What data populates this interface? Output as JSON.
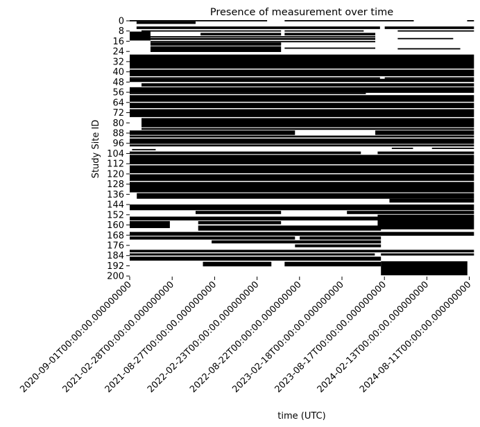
{
  "chart_data": {
    "type": "heatmap",
    "title": "Presence of measurement over time",
    "xlabel": "time (UTC)",
    "ylabel": "Study Site ID",
    "colors": {
      "present": "#000000",
      "absent": "#ffffff"
    },
    "x_start_date": "2020-09-01",
    "x_range_days": [
      0,
      1460
    ],
    "y_range_rows": [
      0,
      201
    ],
    "x_ticks": [
      {
        "day": 0,
        "label": "2020-09-01T00:00:00.000000000"
      },
      {
        "day": 180,
        "label": "2021-02-28T00:00:00.000000000"
      },
      {
        "day": 360,
        "label": "2021-08-27T00:00:00.000000000"
      },
      {
        "day": 540,
        "label": "2022-02-23T00:00:00.000000000"
      },
      {
        "day": 720,
        "label": "2022-08-22T00:00:00.000000000"
      },
      {
        "day": 900,
        "label": "2023-02-18T00:00:00.000000000"
      },
      {
        "day": 1080,
        "label": "2023-08-17T00:00:00.000000000"
      },
      {
        "day": 1260,
        "label": "2024-02-13T00:00:00.000000000"
      },
      {
        "day": 1440,
        "label": "2024-08-11T00:00:00.000000000"
      }
    ],
    "y_ticks": [
      "0",
      "8",
      "16",
      "24",
      "32",
      "40",
      "48",
      "56",
      "64",
      "72",
      "80",
      "88",
      "96",
      "104",
      "112",
      "120",
      "128",
      "136",
      "144",
      "152",
      "160",
      "168",
      "176",
      "184",
      "192",
      "200"
    ],
    "present_segments": [
      [
        0,
        1,
        0,
        582
      ],
      [
        0,
        1,
        656,
        1203
      ],
      [
        0,
        1,
        1429,
        1458
      ],
      [
        1,
        3,
        29,
        279
      ],
      [
        5,
        7,
        29,
        1060
      ],
      [
        5,
        7,
        1080,
        1458
      ],
      [
        8,
        9,
        50,
        641
      ],
      [
        8,
        9,
        656,
        991
      ],
      [
        8,
        9,
        1135,
        1458
      ],
      [
        9,
        16,
        0,
        88
      ],
      [
        10,
        12,
        300,
        641
      ],
      [
        10,
        12,
        656,
        1040
      ],
      [
        12.6,
        13.6,
        88,
        1040
      ],
      [
        14,
        15.5,
        88,
        1040
      ],
      [
        14,
        15,
        1135,
        1370
      ],
      [
        16.4,
        17.4,
        88,
        1040
      ],
      [
        17.5,
        20,
        88,
        641
      ],
      [
        18,
        19,
        432,
        641
      ],
      [
        20.5,
        25,
        88,
        641
      ],
      [
        21.5,
        22.5,
        656,
        1040
      ],
      [
        22,
        23,
        1135,
        1400
      ],
      [
        27,
        38,
        0,
        1458
      ],
      [
        38.8,
        44,
        0,
        1458
      ],
      [
        44.8,
        46,
        0,
        1060
      ],
      [
        44.8,
        46,
        1080,
        1458
      ],
      [
        46,
        48.5,
        0,
        1458
      ],
      [
        49.5,
        52,
        50,
        1458
      ],
      [
        52.6,
        57,
        0,
        1458
      ],
      [
        57,
        58,
        0,
        1000
      ],
      [
        58.8,
        64,
        0,
        1458
      ],
      [
        64.8,
        69,
        0,
        1458
      ],
      [
        69.8,
        76,
        0,
        1458
      ],
      [
        76.8,
        84,
        50,
        1458
      ],
      [
        84.6,
        86,
        50,
        1458
      ],
      [
        86.5,
        90,
        0,
        700
      ],
      [
        86.5,
        90,
        1040,
        1458
      ],
      [
        90.5,
        92,
        0,
        1458
      ],
      [
        92.8,
        97,
        0,
        1458
      ],
      [
        97.5,
        99,
        0,
        1458
      ],
      [
        101,
        102,
        10,
        110
      ],
      [
        100,
        101,
        1110,
        1200
      ],
      [
        100,
        101,
        1280,
        1458
      ],
      [
        103,
        105,
        0,
        979
      ],
      [
        103,
        105,
        1050,
        1458
      ],
      [
        105.6,
        113,
        0,
        1458
      ],
      [
        113.8,
        120,
        0,
        1458
      ],
      [
        120.8,
        126,
        0,
        1458
      ],
      [
        126.8,
        135,
        0,
        1458
      ],
      [
        135.6,
        140,
        30,
        1458
      ],
      [
        140,
        143,
        1100,
        1458
      ],
      [
        144.5,
        149,
        0,
        1458
      ],
      [
        149.5,
        152,
        279,
        641
      ],
      [
        149.5,
        152,
        920,
        1458
      ],
      [
        154,
        157,
        0,
        1060
      ],
      [
        152.5,
        164,
        1050,
        1458
      ],
      [
        157.5,
        163,
        0,
        170
      ],
      [
        157.5,
        160,
        290,
        641
      ],
      [
        161,
        165,
        290,
        1064
      ],
      [
        166,
        169,
        0,
        1458
      ],
      [
        169.6,
        172,
        0,
        700
      ],
      [
        169.6,
        172,
        720,
        1064
      ],
      [
        172.6,
        175,
        347,
        1064
      ],
      [
        175.8,
        178,
        700,
        1064
      ],
      [
        180,
        182,
        0,
        1458
      ],
      [
        182.8,
        184.5,
        0,
        1038
      ],
      [
        182.8,
        184.5,
        1064,
        1458
      ],
      [
        185.4,
        188.5,
        0,
        1064
      ],
      [
        189.4,
        193,
        310,
        600
      ],
      [
        189.4,
        193,
        656,
        1064
      ],
      [
        189,
        200,
        1064,
        1430
      ]
    ]
  }
}
